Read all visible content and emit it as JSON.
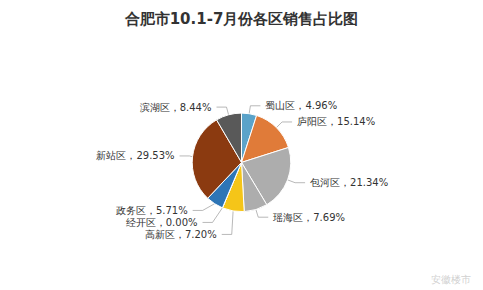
{
  "chart_data": {
    "type": "pie",
    "title": "合肥市10.1-7月份各区销售占比图",
    "categories": [
      "蜀山区",
      "庐阳区",
      "包河区",
      "瑶海区",
      "高新区",
      "经开区",
      "政务区",
      "新站区",
      "滨湖区"
    ],
    "values": [
      4.96,
      15.14,
      21.34,
      7.69,
      7.2,
      0.0,
      5.71,
      29.53,
      8.44
    ],
    "value_labels": [
      "蜀山区，4.96%",
      "庐阳区，15.14%",
      "包河区，21.34%",
      "瑶海区，7.69%",
      "高新区，7.20%",
      "经开区，0.00%",
      "政务区，5.71%",
      "新站区，29.53%",
      "滨湖区，8.44%"
    ],
    "colors": [
      "#5BA3C9",
      "#E07B39",
      "#ADADAD",
      "#ADADAD",
      "#F5C518",
      "#1F5C9E",
      "#2E75B6",
      "#8B3A10",
      "#595959"
    ],
    "data_labels": true,
    "annotations": [
      "安徽楼市"
    ]
  }
}
